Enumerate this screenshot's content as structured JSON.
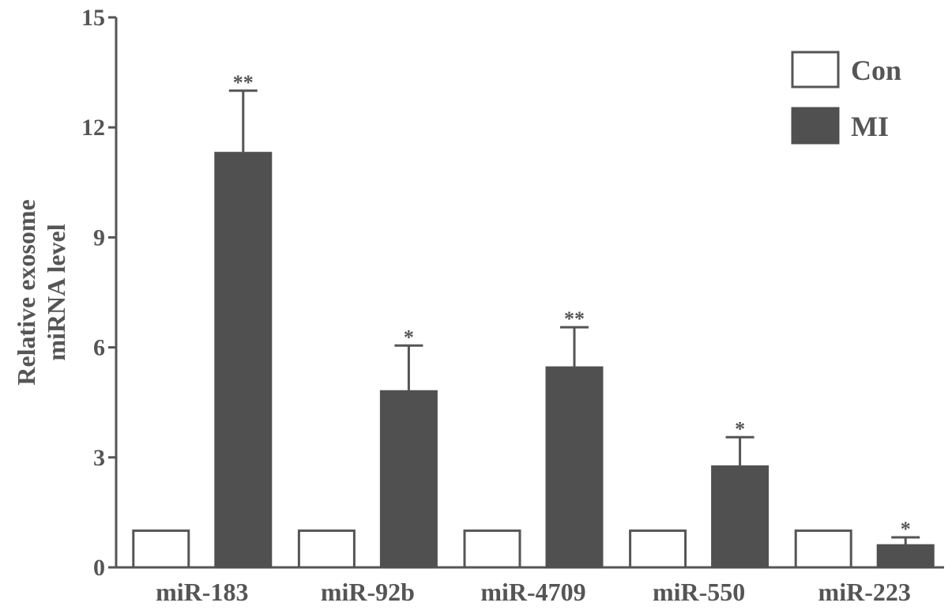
{
  "chart_data": {
    "type": "bar",
    "ylabel": [
      "Relative exosome",
      "miRNA level"
    ],
    "ylim": [
      0,
      15
    ],
    "yticks": [
      0,
      3,
      6,
      9,
      12,
      15
    ],
    "categories": [
      "miR-183",
      "miR-92b",
      "miR-4709",
      "miR-550",
      "miR-223"
    ],
    "series": [
      {
        "name": "Con",
        "values": [
          1,
          1,
          1,
          1,
          1
        ],
        "errors": [
          0,
          0,
          0,
          0,
          0
        ],
        "significance": [
          "",
          "",
          "",
          "",
          ""
        ],
        "fill": "#ffffff",
        "stroke": "#555555"
      },
      {
        "name": "MI",
        "values": [
          11.3,
          4.8,
          5.45,
          2.75,
          0.6
        ],
        "errors": [
          1.7,
          1.25,
          1.1,
          0.8,
          0.22
        ],
        "significance": [
          "**",
          "*",
          "**",
          "*",
          "*"
        ],
        "fill": "#505050",
        "stroke": "#505050"
      }
    ],
    "legend": "top-right",
    "grid": false
  }
}
